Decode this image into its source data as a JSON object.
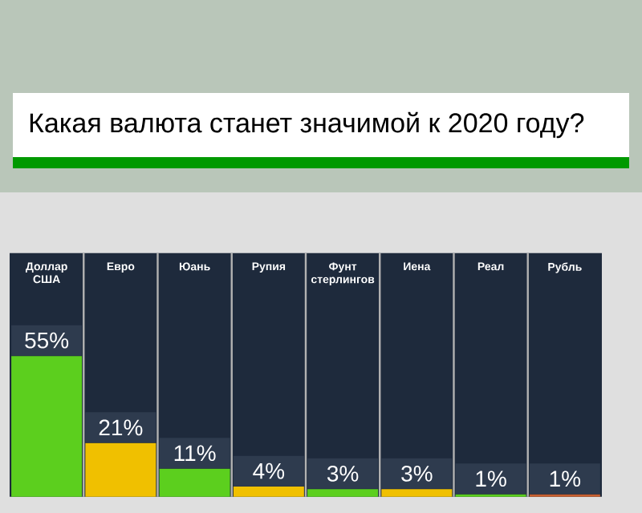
{
  "chart_data": {
    "type": "bar",
    "title": "Какая валюта станет значимой к 2020 году?",
    "categories": [
      "Доллар США",
      "Евро",
      "Юань",
      "Рупия",
      "Фунт стерлингов",
      "Иена",
      "Реал",
      "Рубль"
    ],
    "values": [
      55,
      21,
      11,
      4,
      3,
      3,
      1,
      1
    ],
    "value_labels": [
      "55%",
      "21%",
      "11%",
      "4%",
      "3%",
      "3%",
      "1%",
      "1%"
    ],
    "colors": [
      "#5ccf1e",
      "#f0c000",
      "#5ccf1e",
      "#f0c000",
      "#5ccf1e",
      "#f0c000",
      "#5ccf1e",
      "#c86030"
    ]
  }
}
